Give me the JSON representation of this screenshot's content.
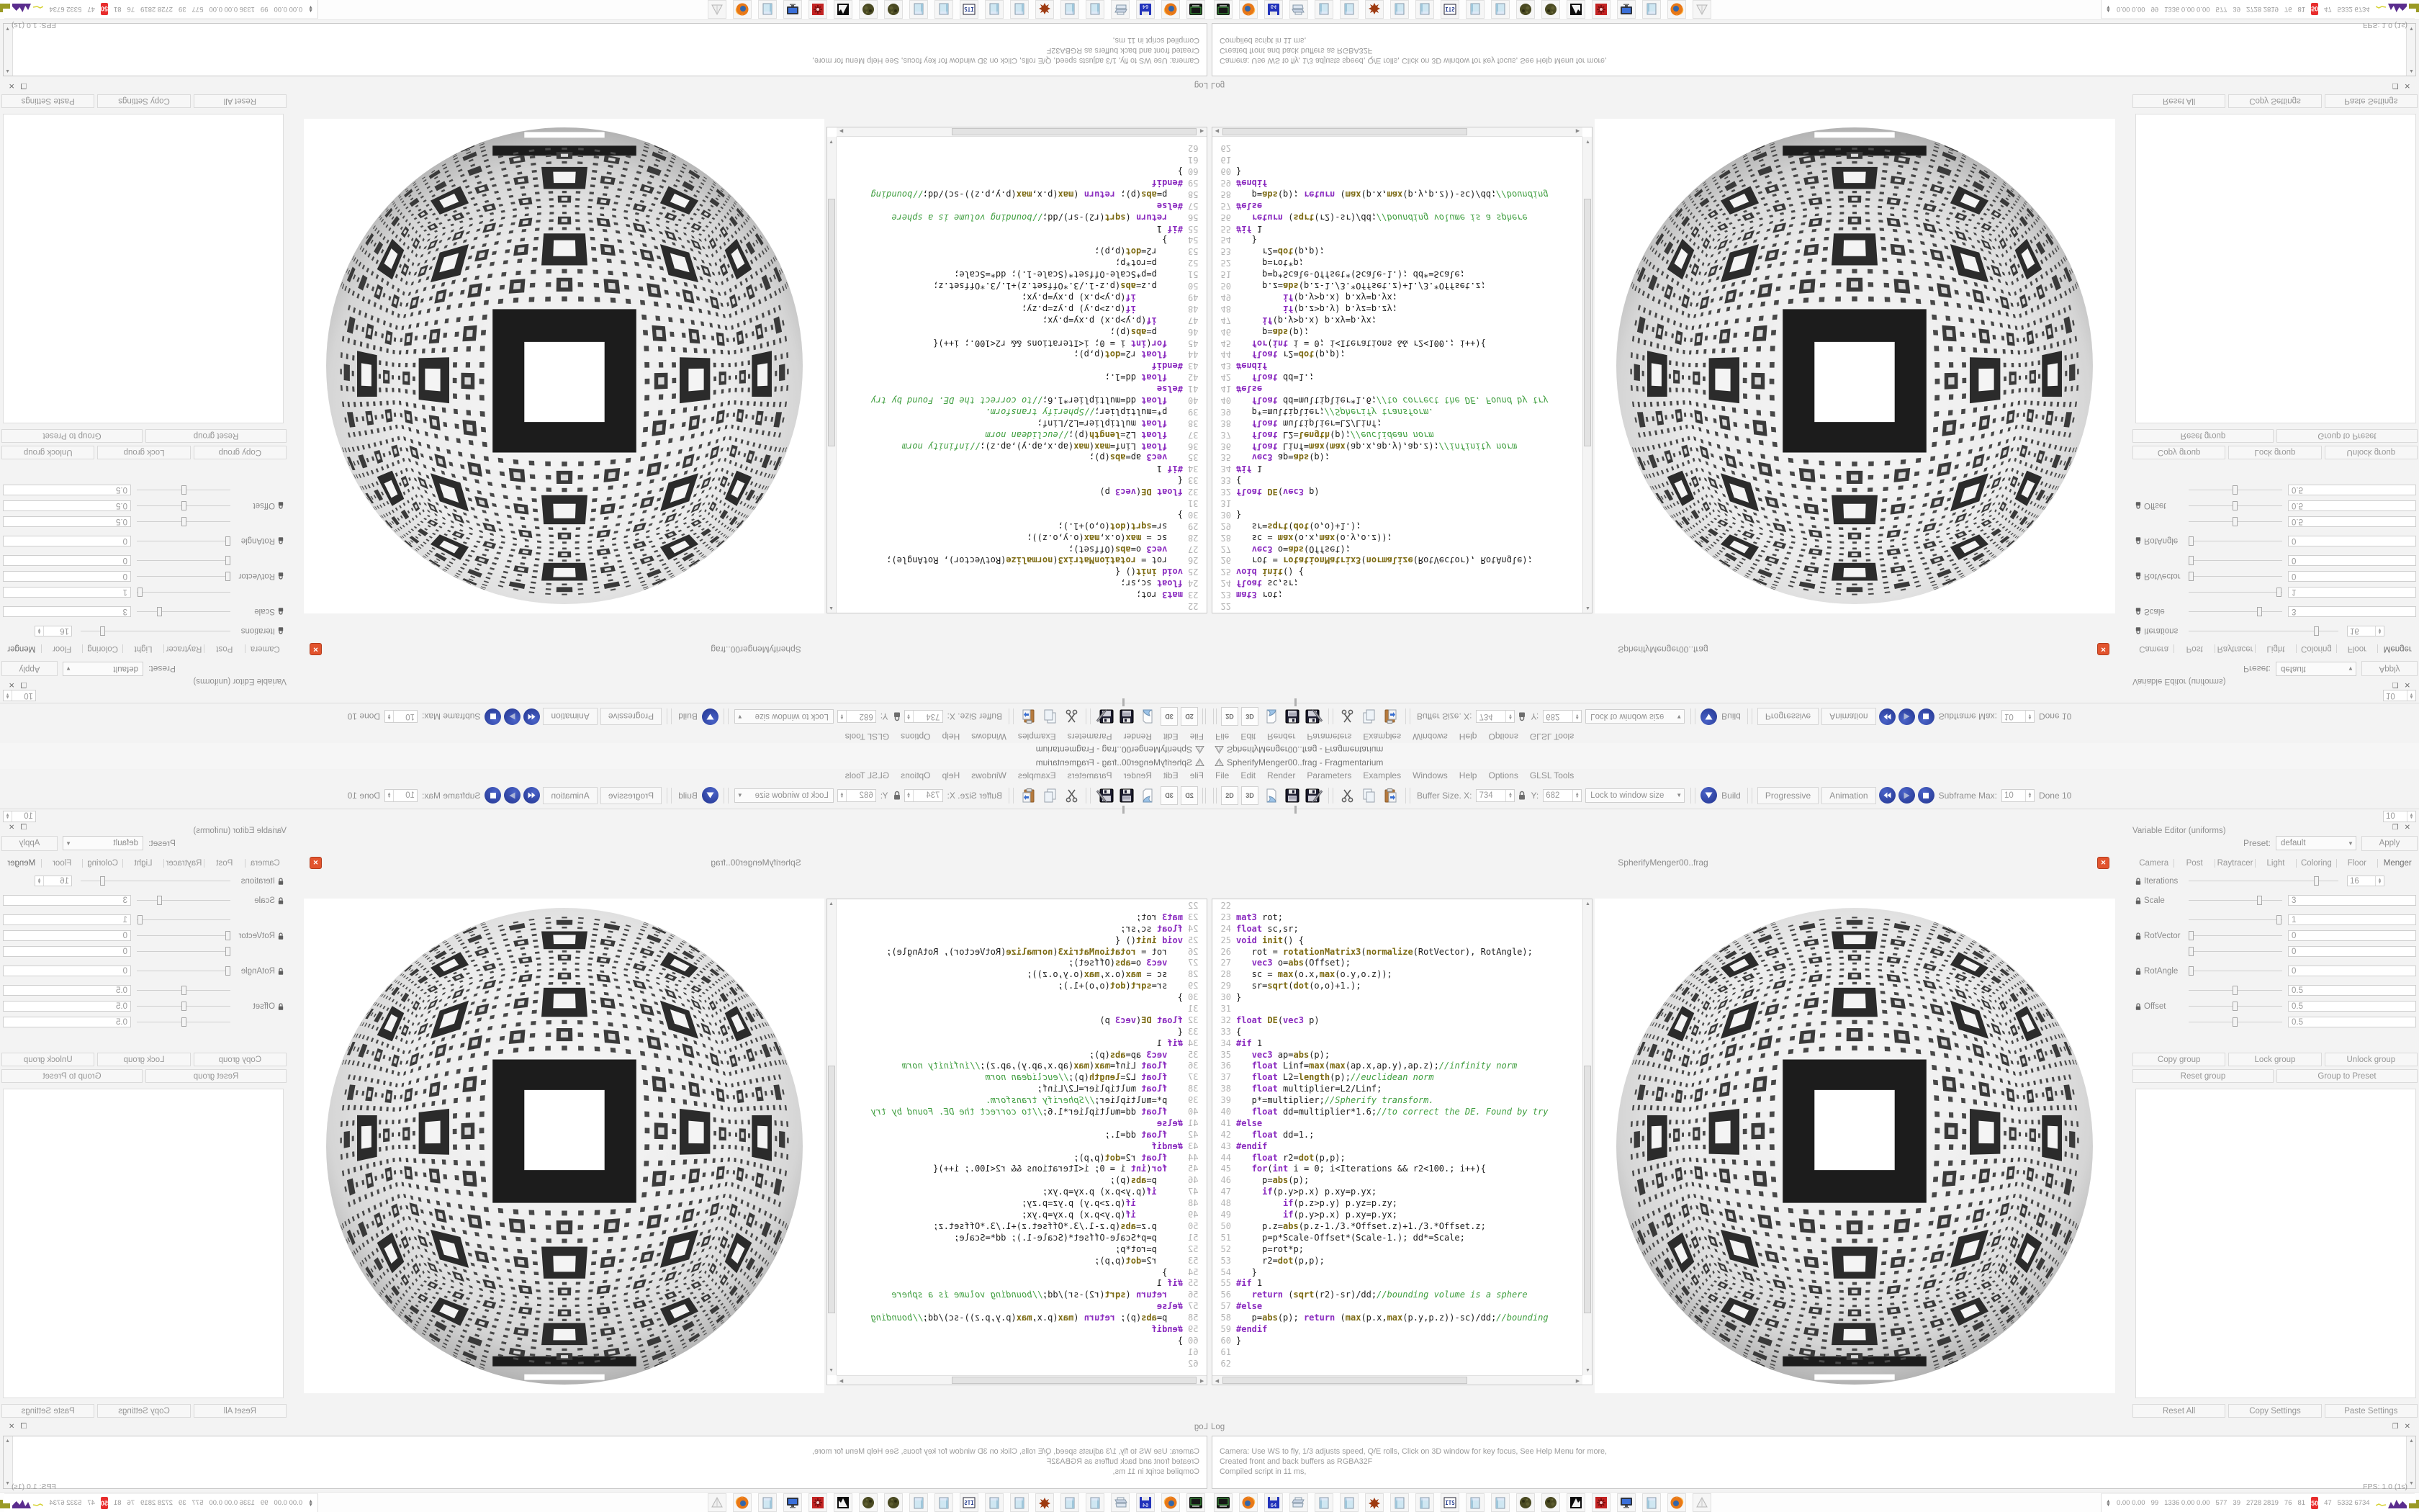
{
  "window": {
    "title": "SpherifyMenger00..frag - Fragmentarium",
    "app_icon": "fragmentarium-pyramid-icon"
  },
  "menu": {
    "items": [
      "File",
      "Edit",
      "Render",
      "Parameters",
      "Examples",
      "Windows",
      "Help",
      "Options",
      "GLSL Tools"
    ]
  },
  "toolbar": {
    "btn_2d": "2D",
    "btn_3d": "3D",
    "buffer_size_label": "Buffer Size. X:",
    "buffer_x": "734",
    "y_label": "Y:",
    "buffer_y": "682",
    "lock_combo": "Lock to window size",
    "build_label": "Build",
    "progressive_label": "Progressive",
    "animation_label": "Animation",
    "subframe_label": "Subframe Max:",
    "subframe_value": "10",
    "done_label": "Done 10",
    "corner_spin_value": "10"
  },
  "tab_bar": {
    "active_tab": "SpherifyMenger00..frag"
  },
  "editor": {
    "first_line": 22,
    "lines": [
      "",
      "mat3 rot;",
      "float sc,sr;",
      "void init() {",
      "   rot = rotationMatrix3(normalize(RotVector), RotAngle);",
      "   vec3 o=abs(Offset);",
      "   sc = max(o.x,max(o.y,o.z));",
      "   sr=sqrt(dot(o,o)+1.);",
      "}",
      "",
      "float DE(vec3 p)",
      "{",
      "#if 1",
      "   vec3 ap=abs(p);",
      "   float Linf=max(max(ap.x,ap.y),ap.z);//infinity norm",
      "   float L2=length(p);//euclidean norm",
      "   float multiplier=L2/Linf;",
      "   p*=multiplier;//Spherify transform.",
      "   float dd=multiplier*1.6;//to correct the DE. Found by try",
      "#else",
      "   float dd=1.;",
      "#endif",
      "   float r2=dot(p,p);",
      "   for(int i = 0; i<Iterations && r2<100.; i++){",
      "     p=abs(p);",
      "     if(p.y>p.x) p.xy=p.yx;",
      "         if(p.z>p.y) p.yz=p.zy;",
      "         if(p.y>p.x) p.xy=p.yx;",
      "     p.z=abs(p.z-1./3.*Offset.z)+1./3.*Offset.z;",
      "     p=p*Scale-Offset*(Scale-1.); dd*=Scale;",
      "     p=rot*p;",
      "     r2=dot(p,p);",
      "   }",
      "#if 1",
      "   return (sqrt(r2)-sr)/dd;//bounding volume is a sphere",
      "#else",
      "   p=abs(p); return (max(p.x,max(p.y,p.z))-sc)/dd;//bounding",
      "#endif",
      "}",
      "",
      ""
    ]
  },
  "viewport": {
    "content": "spherified Menger sponge fractal render"
  },
  "variable_editor": {
    "title": "Variable Editor (uniforms)",
    "preset_label": "Preset:",
    "preset_value": "default",
    "apply_label": "Apply",
    "tabs": [
      "Camera",
      "Post",
      "Raytracer",
      "Light",
      "Coloring",
      "Floor",
      "Menger"
    ],
    "active_tab": "Menger",
    "params": [
      {
        "label": "Iterations",
        "locked": true,
        "rows": [
          {
            "value": "16",
            "widget": "spin",
            "handle": 0.87
          }
        ]
      },
      {
        "label": "Scale",
        "locked": true,
        "rows": [
          {
            "value": "3",
            "widget": "text",
            "handle": 0.78
          }
        ]
      },
      {
        "label": "RotVector",
        "locked": true,
        "rows": [
          {
            "value": "1",
            "widget": "text",
            "handle": 1
          },
          {
            "value": "0",
            "widget": "text",
            "handle": 0
          },
          {
            "value": "0",
            "widget": "text",
            "handle": 0
          }
        ]
      },
      {
        "label": "RotAngle",
        "locked": true,
        "rows": [
          {
            "value": "0",
            "widget": "text",
            "handle": 0
          }
        ]
      },
      {
        "label": "Offset",
        "locked": true,
        "rows": [
          {
            "value": "0.5",
            "widget": "text",
            "handle": 0.5
          },
          {
            "value": "0.5",
            "widget": "text",
            "handle": 0.5
          },
          {
            "value": "0.5",
            "widget": "text",
            "handle": 0.5
          }
        ]
      }
    ],
    "group_buttons": [
      "Copy group",
      "Lock group",
      "Unlock group"
    ],
    "group_buttons2": [
      "Reset group",
      "Group to Preset"
    ],
    "bottom_buttons": [
      "Reset All",
      "Copy Settings",
      "Paste Settings"
    ]
  },
  "log": {
    "title": "Log",
    "lines": [
      "Camera: Use WS to fly, 1/3 adjusts speed, Q/E rolls, Click on 3D window for key focus, See Help Menu for more,",
      "Created front and back buffers as RGBA32F",
      "Compiled script in 11 ms,"
    ],
    "fps": "FPS: 1.0 (1s)"
  },
  "taskbar": {
    "icons": [
      {
        "name": "terminal-icon"
      },
      {
        "name": "firefox-icon"
      },
      {
        "name": "floppy-64-icon",
        "label": "64"
      },
      {
        "name": "printer-icon"
      },
      {
        "name": "notepad-icon"
      },
      {
        "name": "notepad-icon"
      },
      {
        "name": "splat-icon"
      },
      {
        "name": "notepad-icon"
      },
      {
        "name": "notepad-icon"
      },
      {
        "name": "doc-text-icon",
        "label": "ITS"
      },
      {
        "name": "notepad-icon"
      },
      {
        "name": "notepad-icon"
      },
      {
        "name": "fractal-sphere-icon"
      },
      {
        "name": "fractal-sphere-icon"
      },
      {
        "name": "bw-fractal-icon"
      },
      {
        "name": "red-fractal-icon"
      },
      {
        "name": "monitor-icon"
      },
      {
        "name": "notepad-icon"
      },
      {
        "name": "firefox-icon"
      },
      {
        "name": "pyramid-icon"
      }
    ],
    "tray": {
      "values": [
        "0.00 0.00",
        "99",
        "1336 0.00 0.00",
        "577",
        "39",
        "2728 2819",
        "76",
        "81"
      ],
      "badge": "50",
      "values2": [
        "47",
        "5332 6734"
      ],
      "badge_color": "#e82c2c",
      "charts": [
        {
          "type": "line",
          "color": "#d6d232",
          "w": 14
        },
        {
          "type": "spiky",
          "color": "#5b2d8e",
          "w": 26
        },
        {
          "type": "blocky",
          "color": "#9a9a25",
          "w": 40
        },
        {
          "type": "bar",
          "color": "#9a6220",
          "w": 22
        },
        {
          "type": "bar",
          "color": "#2c4d8f",
          "w": 40
        },
        {
          "type": "bar",
          "color": "#9a6220",
          "w": 22
        },
        {
          "type": "line",
          "color": "#44bb44",
          "w": 20
        },
        {
          "type": "spiky",
          "color": "#8e1d1d",
          "w": 30
        }
      ]
    }
  },
  "colors": {
    "accent_blue": "#2b3d9b",
    "error_red": "#e2542e",
    "badge_red": "#e82c2c",
    "window_bg": "#f3f3f3"
  }
}
